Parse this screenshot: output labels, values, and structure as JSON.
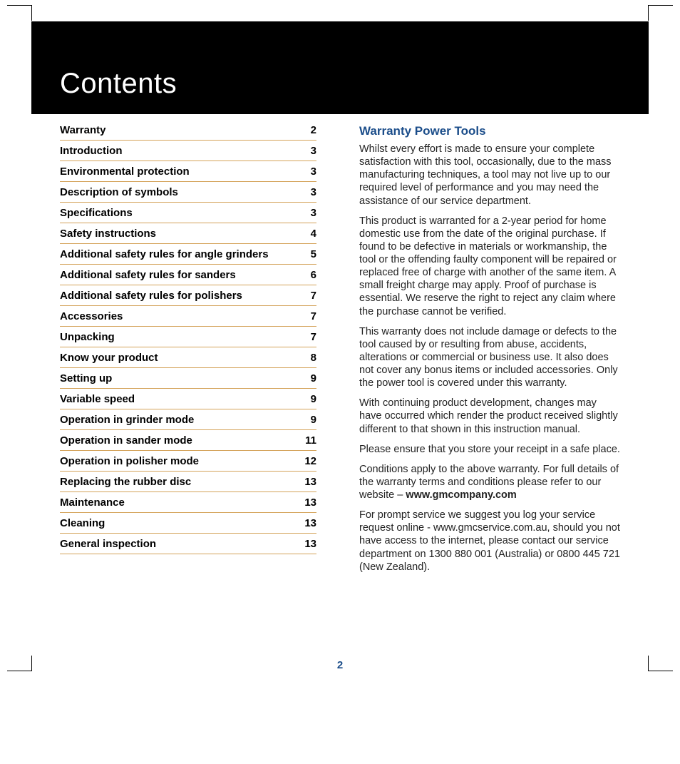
{
  "title": "Contents",
  "page_number": "2",
  "colors": {
    "header_bg": "#000000",
    "header_text": "#ffffff",
    "accent": "#1b4d8a",
    "rule": "#d4a35a",
    "body_text": "#222222"
  },
  "toc": [
    {
      "label": "Warranty",
      "page": "2"
    },
    {
      "label": "Introduction",
      "page": "3"
    },
    {
      "label": "Environmental protection",
      "page": "3"
    },
    {
      "label": "Description of symbols",
      "page": "3"
    },
    {
      "label": "Specifications",
      "page": "3"
    },
    {
      "label": "Safety instructions",
      "page": "4"
    },
    {
      "label": "Additional safety rules for angle grinders",
      "page": "5"
    },
    {
      "label": "Additional safety rules for sanders",
      "page": "6"
    },
    {
      "label": "Additional safety rules for polishers",
      "page": "7"
    },
    {
      "label": "Accessories",
      "page": "7"
    },
    {
      "label": "Unpacking",
      "page": "7"
    },
    {
      "label": "Know your product",
      "page": "8"
    },
    {
      "label": "Setting up",
      "page": "9"
    },
    {
      "label": "Variable speed",
      "page": "9"
    },
    {
      "label": "Operation in grinder mode",
      "page": "9"
    },
    {
      "label": "Operation in sander mode",
      "page": "11"
    },
    {
      "label": "Operation in polisher mode",
      "page": "12"
    },
    {
      "label": "Replacing the rubber disc",
      "page": "13"
    },
    {
      "label": "Maintenance",
      "page": "13"
    },
    {
      "label": "Cleaning",
      "page": "13"
    },
    {
      "label": "General inspection",
      "page": "13"
    }
  ],
  "warranty": {
    "heading": "Warranty Power Tools",
    "p1": "Whilst every effort is made to ensure your complete satisfaction with this tool, occasionally, due to the mass manufacturing techniques, a tool may not live up to our required level of performance and you may need the assistance of our service department.",
    "p2": "This product is warranted for a 2-year period for home domestic use from the date of the original purchase. If found to be defective in materials or workmanship, the tool or the offending faulty component will be repaired or replaced free of charge with another of the same item. A small freight charge may apply. Proof of purchase is essential. We reserve the right to reject any claim where the purchase cannot be verified.",
    "p3": "This warranty does not include damage or defects to the tool caused by or resulting from abuse, accidents, alterations or commercial or business use. It also does not cover any bonus items or included accessories. Only the power tool is covered under this warranty.",
    "p4": "With continuing product development, changes may have occurred which render the product received slightly different to that shown in this instruction manual.",
    "p5": "Please ensure that you store your receipt in a safe place.",
    "p6a": "Conditions apply to the above warranty. For full details of the warranty terms and conditions please refer to our website – ",
    "p6b": "www.gmcompany.com",
    "p7": "For prompt service we suggest you log your service request online - www.gmcservice.com.au, should you not have access to the internet, please contact our service department on 1300 880 001 (Australia) or 0800 445 721 (New Zealand)."
  }
}
